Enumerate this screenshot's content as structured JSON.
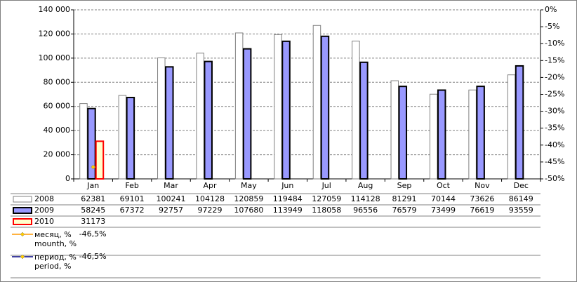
{
  "chart_data": {
    "type": "bar",
    "categories": [
      "Jan",
      "Feb",
      "Mar",
      "Apr",
      "May",
      "Jun",
      "Jul",
      "Aug",
      "Sep",
      "Oct",
      "Nov",
      "Dec"
    ],
    "ylim": [
      0,
      140000
    ],
    "yticks": [
      0,
      {
        "value": 20000,
        "label": "20 000"
      },
      {
        "value": 40000,
        "label": "40 000"
      },
      {
        "value": 60000,
        "label": "60 000"
      },
      {
        "value": 80000,
        "label": "80 000"
      },
      {
        "value": 100000,
        "label": "100 000"
      },
      {
        "value": 120000,
        "label": "120 000"
      },
      {
        "value": 140000,
        "label": "140 000"
      }
    ],
    "y2lim": [
      -50,
      0
    ],
    "y2ticks": [
      {
        "value": 0,
        "label": "0%"
      },
      {
        "value": -5,
        "label": "-5%"
      },
      {
        "value": -10,
        "label": "-10%"
      },
      {
        "value": -15,
        "label": "-15%"
      },
      {
        "value": -20,
        "label": "-20%"
      },
      {
        "value": -25,
        "label": "-25%"
      },
      {
        "value": -30,
        "label": "-30%"
      },
      {
        "value": -35,
        "label": "-35%"
      },
      {
        "value": -40,
        "label": "-40%"
      },
      {
        "value": -45,
        "label": "-45%"
      },
      {
        "value": -50,
        "label": "-50%"
      }
    ],
    "grid": true,
    "series": [
      {
        "name": "2008",
        "type": "bar",
        "color": "#ffffff",
        "edge": "#808080",
        "values": [
          62381,
          69101,
          100241,
          104128,
          120859,
          119484,
          127059,
          114128,
          81291,
          70144,
          73626,
          86149
        ]
      },
      {
        "name": "2009",
        "type": "bar",
        "color": "#9999ff",
        "edge": "#000000",
        "values": [
          58245,
          67372,
          92757,
          97229,
          107680,
          113949,
          118058,
          96556,
          76579,
          73499,
          76619,
          93559
        ]
      },
      {
        "name": "2010",
        "type": "bar",
        "color": "#ffffcc",
        "edge": "#ff0000",
        "values": [
          31173,
          null,
          null,
          null,
          null,
          null,
          null,
          null,
          null,
          null,
          null,
          null
        ]
      },
      {
        "name": "месяц, %\nmounth, %",
        "type": "line",
        "axis": "y2",
        "color": "#ff9900",
        "marker": "#ffcc00",
        "values": [
          -46.5,
          null,
          null,
          null,
          null,
          null,
          null,
          null,
          null,
          null,
          null,
          null
        ],
        "value_labels": [
          "-46,5%",
          null,
          null,
          null,
          null,
          null,
          null,
          null,
          null,
          null,
          null,
          null
        ]
      },
      {
        "name": "период, %\nperiod, %",
        "type": "line",
        "axis": "y2",
        "color": "#000080",
        "marker": "#ffcc00",
        "values": [
          -46.5,
          null,
          null,
          null,
          null,
          null,
          null,
          null,
          null,
          null,
          null,
          null
        ],
        "value_labels": [
          "-46,5%",
          null,
          null,
          null,
          null,
          null,
          null,
          null,
          null,
          null,
          null,
          null
        ]
      }
    ]
  }
}
